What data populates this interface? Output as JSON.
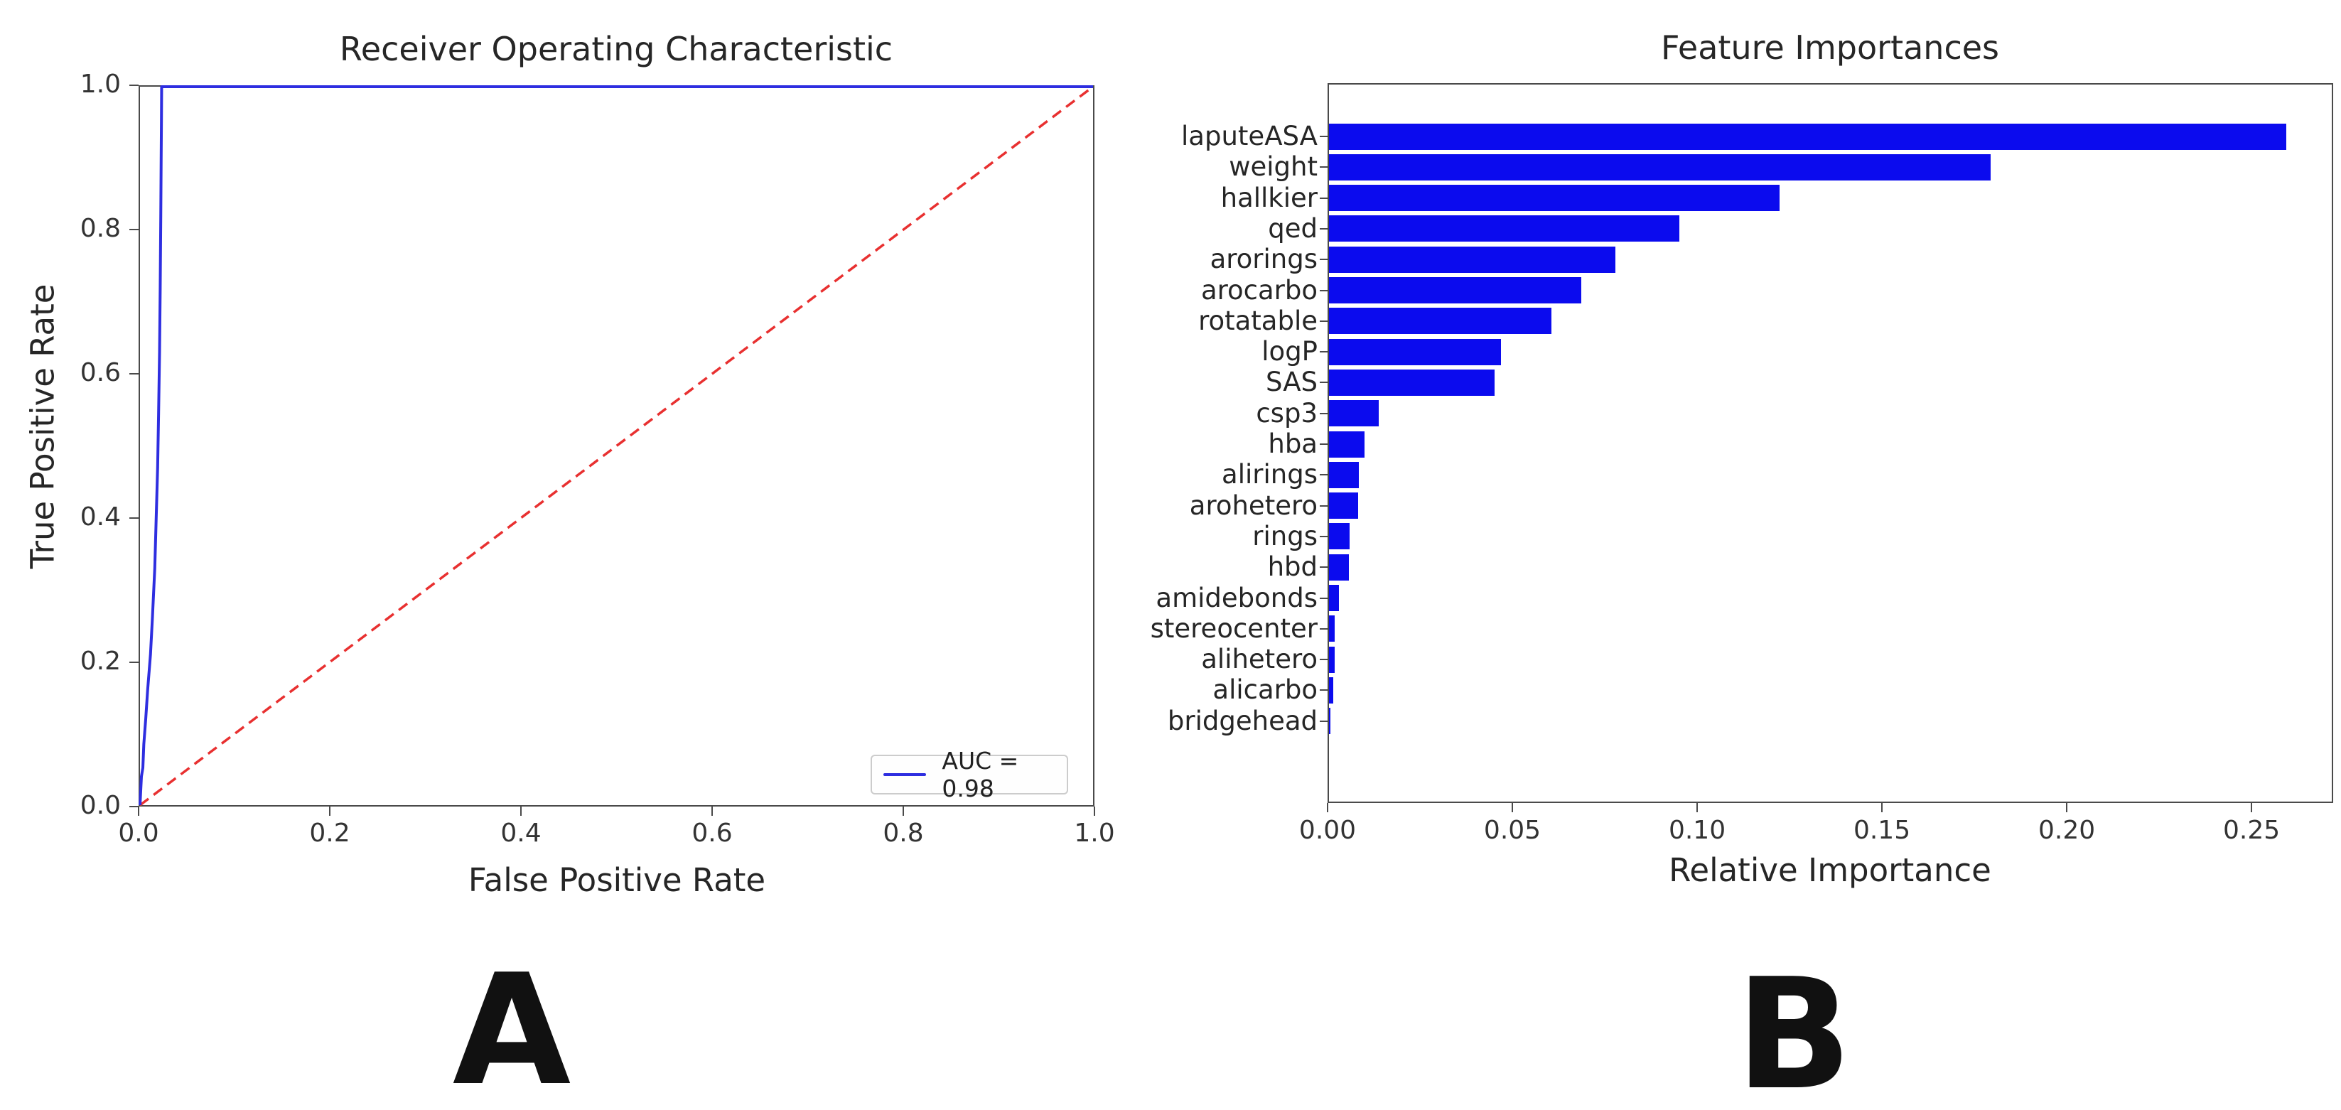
{
  "figure": {
    "panel_a": {
      "title": "Receiver Operating Characteristic",
      "xlabel": "False Positive Rate",
      "ylabel": "True Positive Rate",
      "legend_label": "AUC = 0.98",
      "corner_label": "A"
    },
    "panel_b": {
      "title": "Feature Importances",
      "xlabel": "Relative Importance",
      "corner_label": "B"
    }
  },
  "chart_data": [
    {
      "type": "line",
      "title": "Receiver Operating Characteristic",
      "xlabel": "False Positive Rate",
      "ylabel": "True Positive Rate",
      "xlim": [
        0.0,
        1.0
      ],
      "ylim": [
        0.0,
        1.0
      ],
      "x_tick_labels": [
        "0.0",
        "0.2",
        "0.4",
        "0.6",
        "0.8",
        "1.0"
      ],
      "y_tick_labels": [
        "0.0",
        "0.2",
        "0.4",
        "0.6",
        "0.8",
        "1.0"
      ],
      "legend": {
        "position": "lower right",
        "entries": [
          {
            "label": "AUC = 0.98",
            "color": "#2e2ee0",
            "style": "solid"
          }
        ]
      },
      "auc": 0.98,
      "series": [
        {
          "name": "ROC curve",
          "color": "#2e2ee0",
          "style": "solid",
          "x": [
            0,
            0.0015,
            0.003,
            0.004,
            0.006,
            0.008,
            0.011,
            0.013,
            0.0155,
            0.017,
            0.0185,
            0.0195,
            0.0205,
            0.0212,
            0.0218,
            0.0222,
            0.0225,
            0.0227,
            1.0
          ],
          "y": [
            0,
            0.04,
            0.052,
            0.085,
            0.12,
            0.16,
            0.21,
            0.26,
            0.33,
            0.4,
            0.47,
            0.545,
            0.63,
            0.72,
            0.82,
            0.9,
            0.955,
            1.0,
            1.0
          ]
        },
        {
          "name": "chance diagonal",
          "color": "#e83030",
          "style": "dashed",
          "x": [
            0,
            1
          ],
          "y": [
            0,
            1
          ]
        }
      ],
      "grid": false
    },
    {
      "type": "bar",
      "orientation": "horizontal",
      "title": "Feature Importances",
      "xlabel": "Relative Importance",
      "xlim": [
        0.0,
        0.2721
      ],
      "x_tick_values": [
        0.0,
        0.05,
        0.1,
        0.15,
        0.2,
        0.25
      ],
      "x_tick_labels": [
        "0.00",
        "0.05",
        "0.10",
        "0.15",
        "0.20",
        "0.25"
      ],
      "bar_color": "#0b0bee",
      "categories": [
        "laputeASA",
        "weight",
        "hallkier",
        "qed",
        "arorings",
        "arocarbo",
        "rotatable",
        "logP",
        "SAS",
        "csp3",
        "hba",
        "alirings",
        "arohetero",
        "rings",
        "hbd",
        "amidebonds",
        "stereocenter",
        "alihetero",
        "alicarbo",
        "bridgehead"
      ],
      "values": [
        0.259,
        0.179,
        0.122,
        0.0948,
        0.0775,
        0.0683,
        0.0602,
        0.0465,
        0.0448,
        0.0135,
        0.0096,
        0.008,
        0.0078,
        0.0056,
        0.0053,
        0.0027,
        0.0016,
        0.0015,
        0.0012,
        0.0003
      ],
      "grid": false
    }
  ]
}
